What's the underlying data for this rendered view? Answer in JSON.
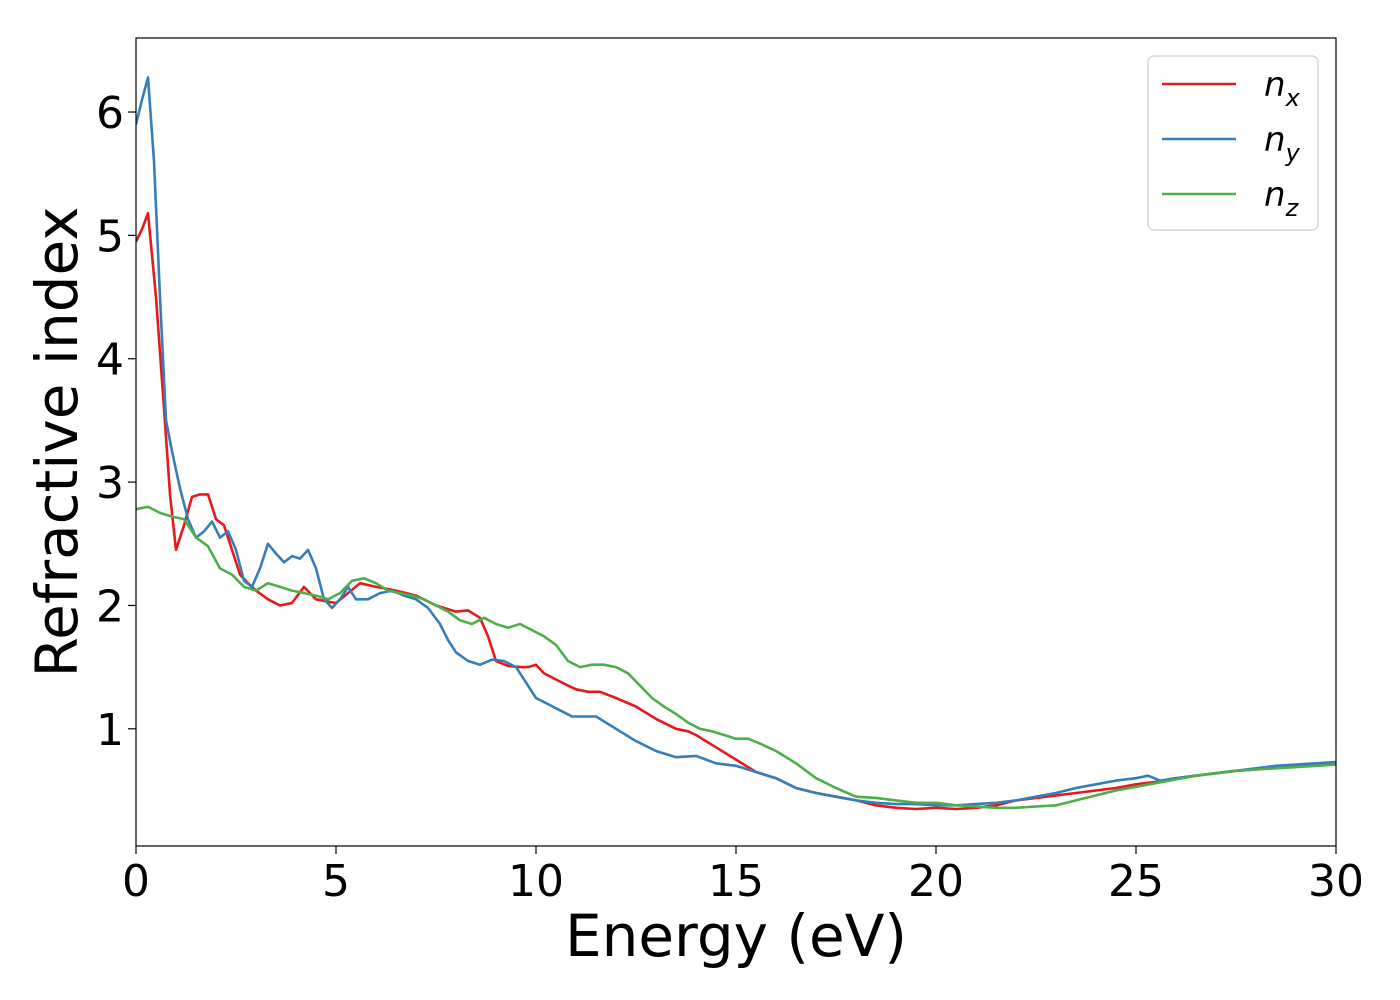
{
  "chart_data": {
    "type": "line",
    "xlabel": "Energy (eV)",
    "ylabel": "Refractive index",
    "xlim": [
      0,
      30
    ],
    "ylim": [
      0.05,
      6.6
    ],
    "xticks": [
      0,
      5,
      10,
      15,
      20,
      25,
      30
    ],
    "yticks": [
      1,
      2,
      3,
      4,
      5,
      6
    ],
    "grid": false,
    "legend_position": "top-right",
    "series": [
      {
        "name": "n",
        "subscript": "x",
        "color": "#e41a1c",
        "x": [
          0,
          0.15,
          0.3,
          0.5,
          0.7,
          0.85,
          1.0,
          1.2,
          1.4,
          1.6,
          1.8,
          2.0,
          2.2,
          2.4,
          2.6,
          2.8,
          3.0,
          3.3,
          3.6,
          3.9,
          4.2,
          4.5,
          4.8,
          5.0,
          5.3,
          5.6,
          6.0,
          6.5,
          7.0,
          7.5,
          8.0,
          8.3,
          8.6,
          8.8,
          9.0,
          9.3,
          9.6,
          9.8,
          10.0,
          10.2,
          10.5,
          10.8,
          11.0,
          11.3,
          11.6,
          12.0,
          12.5,
          13.0,
          13.5,
          13.8,
          14.0,
          14.5,
          15.0,
          15.5,
          16.0,
          16.5,
          17.0,
          17.5,
          18.0,
          18.5,
          19.0,
          19.5,
          20.0,
          20.5,
          21.0,
          21.5,
          22.0,
          22.5,
          23.0,
          23.5,
          24.0,
          24.5,
          25.0,
          25.5,
          26.0,
          26.5,
          27.0,
          27.5,
          28.0,
          28.5,
          29.0,
          29.5,
          30.0
        ],
        "y": [
          4.95,
          5.05,
          5.18,
          4.5,
          3.6,
          2.9,
          2.45,
          2.65,
          2.88,
          2.9,
          2.9,
          2.7,
          2.65,
          2.45,
          2.25,
          2.18,
          2.12,
          2.05,
          2.0,
          2.02,
          2.15,
          2.05,
          2.03,
          2.02,
          2.1,
          2.18,
          2.15,
          2.12,
          2.08,
          2.0,
          1.95,
          1.96,
          1.9,
          1.75,
          1.55,
          1.51,
          1.5,
          1.5,
          1.52,
          1.45,
          1.4,
          1.35,
          1.32,
          1.3,
          1.3,
          1.25,
          1.18,
          1.08,
          1.0,
          0.98,
          0.95,
          0.85,
          0.75,
          0.65,
          0.6,
          0.52,
          0.48,
          0.45,
          0.42,
          0.38,
          0.36,
          0.35,
          0.36,
          0.35,
          0.36,
          0.38,
          0.42,
          0.44,
          0.46,
          0.48,
          0.5,
          0.52,
          0.55,
          0.57,
          0.6,
          0.62,
          0.64,
          0.66,
          0.67,
          0.69,
          0.7,
          0.71,
          0.72
        ]
      },
      {
        "name": "n",
        "subscript": "y",
        "color": "#377eb8",
        "x": [
          0,
          0.15,
          0.3,
          0.45,
          0.6,
          0.75,
          0.9,
          1.1,
          1.3,
          1.5,
          1.7,
          1.9,
          2.1,
          2.3,
          2.5,
          2.7,
          2.9,
          3.1,
          3.3,
          3.5,
          3.7,
          3.9,
          4.1,
          4.3,
          4.5,
          4.7,
          4.9,
          5.1,
          5.3,
          5.5,
          5.8,
          6.1,
          6.4,
          6.7,
          7.0,
          7.3,
          7.6,
          7.8,
          8.0,
          8.3,
          8.6,
          8.9,
          9.2,
          9.5,
          9.8,
          10.0,
          10.3,
          10.6,
          10.9,
          11.2,
          11.5,
          12.0,
          12.5,
          13.0,
          13.5,
          14.0,
          14.5,
          15.0,
          15.5,
          16.0,
          16.5,
          17.0,
          17.5,
          18.0,
          18.5,
          19.0,
          19.5,
          20.0,
          20.5,
          21.0,
          21.5,
          22.0,
          22.5,
          23.0,
          23.5,
          24.0,
          24.5,
          25.0,
          25.3,
          25.6,
          26.0,
          26.5,
          27.0,
          27.5,
          28.0,
          28.5,
          29.0,
          29.5,
          30.0
        ],
        "y": [
          5.9,
          6.1,
          6.28,
          5.6,
          4.5,
          3.5,
          3.25,
          2.95,
          2.7,
          2.55,
          2.6,
          2.68,
          2.55,
          2.6,
          2.45,
          2.2,
          2.15,
          2.3,
          2.5,
          2.42,
          2.35,
          2.4,
          2.38,
          2.45,
          2.3,
          2.05,
          1.98,
          2.05,
          2.15,
          2.05,
          2.05,
          2.1,
          2.12,
          2.08,
          2.05,
          1.98,
          1.85,
          1.72,
          1.62,
          1.55,
          1.52,
          1.56,
          1.55,
          1.5,
          1.35,
          1.25,
          1.2,
          1.15,
          1.1,
          1.1,
          1.1,
          1.0,
          0.9,
          0.82,
          0.77,
          0.78,
          0.72,
          0.7,
          0.65,
          0.6,
          0.52,
          0.48,
          0.45,
          0.42,
          0.4,
          0.39,
          0.39,
          0.38,
          0.38,
          0.39,
          0.4,
          0.42,
          0.45,
          0.48,
          0.52,
          0.55,
          0.58,
          0.6,
          0.62,
          0.58,
          0.6,
          0.62,
          0.64,
          0.66,
          0.68,
          0.7,
          0.71,
          0.72,
          0.73
        ]
      },
      {
        "name": "n",
        "subscript": "z",
        "color": "#4daf4a",
        "x": [
          0,
          0.3,
          0.6,
          0.9,
          1.2,
          1.5,
          1.8,
          2.1,
          2.4,
          2.7,
          3.0,
          3.3,
          3.6,
          3.9,
          4.2,
          4.5,
          4.8,
          5.1,
          5.4,
          5.7,
          6.0,
          6.3,
          6.6,
          6.9,
          7.2,
          7.5,
          7.8,
          8.1,
          8.4,
          8.7,
          9.0,
          9.3,
          9.6,
          9.9,
          10.2,
          10.5,
          10.8,
          11.1,
          11.4,
          11.7,
          12.0,
          12.3,
          12.6,
          12.9,
          13.2,
          13.5,
          13.8,
          14.1,
          14.4,
          14.7,
          15.0,
          15.3,
          15.6,
          16.0,
          16.5,
          17.0,
          17.5,
          18.0,
          18.5,
          19.0,
          19.5,
          20.0,
          20.5,
          21.0,
          21.5,
          22.0,
          22.5,
          23.0,
          23.5,
          24.0,
          24.5,
          25.0,
          25.5,
          26.0,
          26.5,
          27.0,
          27.5,
          28.0,
          28.5,
          29.0,
          29.5,
          30.0
        ],
        "y": [
          2.78,
          2.8,
          2.75,
          2.72,
          2.7,
          2.55,
          2.48,
          2.3,
          2.25,
          2.15,
          2.12,
          2.18,
          2.15,
          2.12,
          2.1,
          2.08,
          2.05,
          2.1,
          2.2,
          2.22,
          2.18,
          2.12,
          2.1,
          2.08,
          2.05,
          2.0,
          1.95,
          1.88,
          1.85,
          1.9,
          1.85,
          1.82,
          1.85,
          1.8,
          1.75,
          1.68,
          1.55,
          1.5,
          1.52,
          1.52,
          1.5,
          1.45,
          1.35,
          1.25,
          1.18,
          1.12,
          1.05,
          1.0,
          0.98,
          0.95,
          0.92,
          0.92,
          0.88,
          0.82,
          0.72,
          0.6,
          0.52,
          0.45,
          0.44,
          0.42,
          0.4,
          0.4,
          0.38,
          0.37,
          0.36,
          0.36,
          0.37,
          0.38,
          0.42,
          0.46,
          0.5,
          0.53,
          0.56,
          0.59,
          0.62,
          0.64,
          0.66,
          0.67,
          0.68,
          0.69,
          0.7,
          0.71
        ]
      }
    ]
  }
}
